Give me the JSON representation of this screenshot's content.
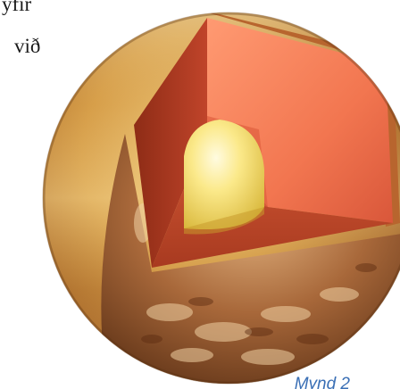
{
  "text": {
    "fragment_1": "yfir",
    "fragment_2": "við"
  },
  "figure": {
    "subject": "planet-interior-cutaway",
    "caption": "Mynd 2"
  },
  "colors": {
    "caption": "#3a6fb5",
    "body_text": "#1a1a1a",
    "surface": "#c98f3a",
    "mantle": "#f07a55",
    "core": "#f5e07a"
  }
}
